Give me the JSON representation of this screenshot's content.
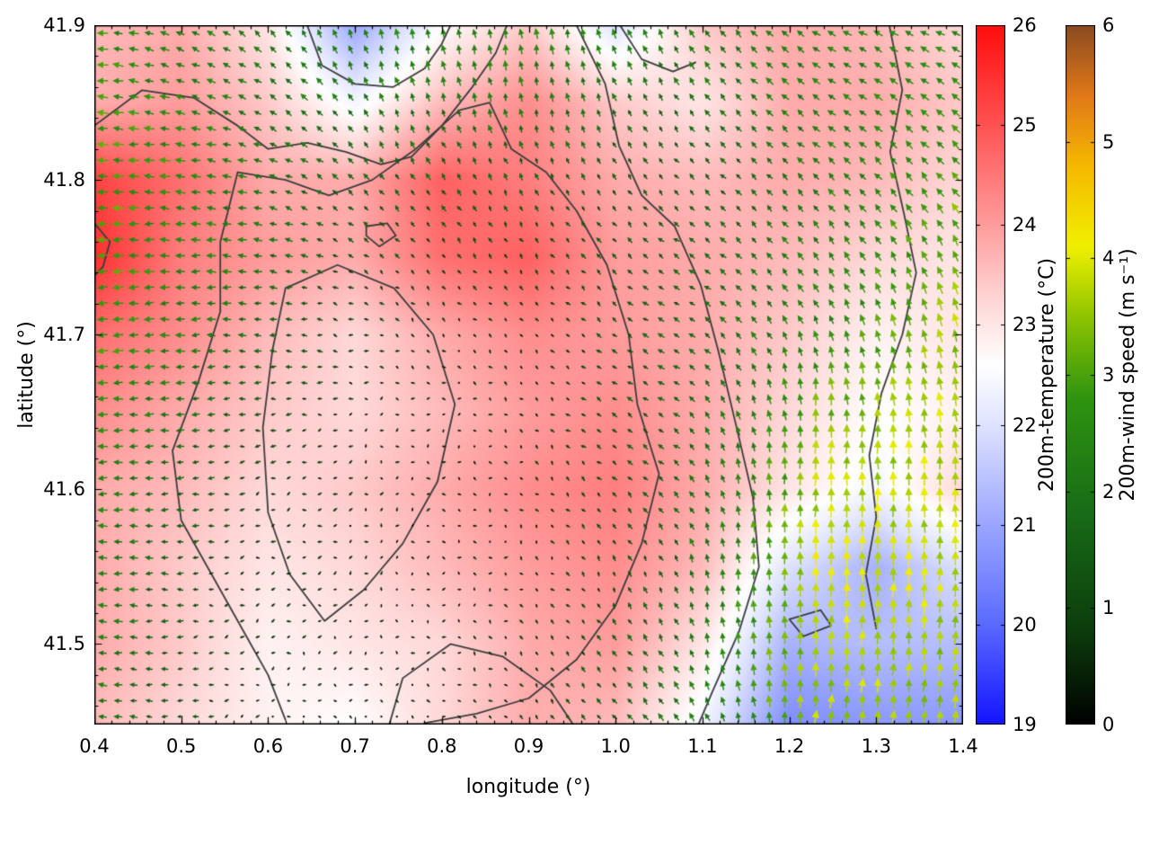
{
  "page": {
    "background": "#ffffff"
  },
  "axes": {
    "xlabel": "longitude (°)",
    "ylabel": "latitude (°)",
    "x_tick_labels": [
      "0.4",
      "0.5",
      "0.6",
      "0.7",
      "0.8",
      "0.9",
      "1.0",
      "1.1",
      "1.2",
      "1.3",
      "1.4"
    ],
    "y_tick_labels": [
      "41.5",
      "41.6",
      "41.7",
      "41.8",
      "41.9"
    ]
  },
  "chart_data": {
    "type": "heatmap",
    "subtype": "temperature field with wind vector overlay and terrain contours",
    "title": "",
    "xlabel": "longitude (°)",
    "ylabel": "latitude (°)",
    "xlim": [
      0.4,
      1.4
    ],
    "ylim": [
      41.448,
      41.9
    ],
    "x_ticks": [
      0.4,
      0.5,
      0.6,
      0.7,
      0.8,
      0.9,
      1.0,
      1.1,
      1.2,
      1.3,
      1.4
    ],
    "y_ticks": [
      41.5,
      41.6,
      41.7,
      41.8,
      41.9
    ],
    "x_minor_step": 0.02,
    "y_minor_step": 0.02,
    "contour_color": "#3c3c3c",
    "temperature_field": {
      "units": "°C",
      "lon": [
        0.4,
        0.5,
        0.6,
        0.7,
        0.8,
        0.9,
        1.0,
        1.1,
        1.2,
        1.3,
        1.4
      ],
      "lat": [
        41.9,
        41.85,
        41.8,
        41.75,
        41.7,
        41.65,
        41.6,
        41.55,
        41.5,
        41.45
      ],
      "values": [
        [
          23.6,
          23.8,
          23.0,
          21.0,
          22.6,
          23.4,
          22.0,
          23.4,
          23.8,
          23.6,
          23.2
        ],
        [
          23.8,
          24.0,
          23.4,
          22.4,
          23.6,
          24.2,
          23.4,
          23.0,
          23.8,
          23.8,
          23.4
        ],
        [
          25.2,
          24.6,
          23.8,
          23.8,
          24.8,
          24.4,
          23.8,
          23.6,
          23.8,
          23.6,
          23.2
        ],
        [
          25.5,
          24.4,
          24.0,
          23.8,
          24.6,
          24.8,
          24.0,
          23.8,
          23.6,
          23.2,
          23.0
        ],
        [
          24.6,
          24.2,
          23.6,
          23.2,
          23.8,
          24.2,
          24.0,
          23.8,
          23.4,
          22.8,
          23.0
        ],
        [
          24.2,
          23.8,
          23.4,
          23.2,
          23.6,
          24.0,
          24.2,
          23.8,
          23.2,
          22.6,
          22.8
        ],
        [
          23.8,
          23.6,
          23.2,
          23.4,
          23.8,
          24.2,
          24.4,
          23.8,
          23.0,
          22.4,
          23.2
        ],
        [
          23.8,
          23.4,
          23.0,
          23.2,
          23.6,
          24.0,
          24.2,
          23.6,
          22.0,
          21.2,
          22.0
        ],
        [
          23.8,
          23.4,
          22.8,
          23.0,
          23.2,
          23.8,
          24.0,
          23.0,
          21.2,
          21.4,
          21.4
        ],
        [
          23.6,
          23.2,
          22.8,
          22.6,
          23.2,
          23.8,
          23.6,
          22.4,
          20.6,
          20.8,
          20.8
        ]
      ]
    },
    "wind_field": {
      "units": "m s⁻¹",
      "lon": [
        0.4,
        0.567,
        0.733,
        0.9,
        1.067,
        1.233,
        1.4
      ],
      "lat": [
        41.9,
        41.81,
        41.72,
        41.63,
        41.54,
        41.45
      ],
      "u": [
        [
          -2.6,
          -1.6,
          -0.6,
          -0.2,
          -1.2,
          -2.0,
          -2.4
        ],
        [
          -3.0,
          -2.2,
          -1.0,
          -0.6,
          -0.8,
          -1.6,
          -2.0
        ],
        [
          -3.0,
          -2.0,
          -0.5,
          -0.4,
          -1.4,
          -1.2,
          -1.0
        ],
        [
          -2.6,
          -1.0,
          -0.3,
          -0.3,
          -1.4,
          0.3,
          -0.5
        ],
        [
          -2.4,
          -0.6,
          -0.2,
          -0.3,
          -0.6,
          0.0,
          0.2
        ],
        [
          -2.0,
          -0.5,
          -0.2,
          -0.5,
          -1.4,
          0.4,
          0.4
        ]
      ],
      "v": [
        [
          0.4,
          1.2,
          2.4,
          2.6,
          2.0,
          1.2,
          1.0
        ],
        [
          0.0,
          0.5,
          1.4,
          1.4,
          1.0,
          1.4,
          2.2
        ],
        [
          -0.3,
          0.1,
          0.3,
          0.5,
          0.8,
          2.0,
          3.4
        ],
        [
          0.0,
          -0.2,
          -0.2,
          0.3,
          1.0,
          3.6,
          3.8
        ],
        [
          0.1,
          -0.2,
          -0.2,
          0.2,
          1.5,
          4.0,
          3.8
        ],
        [
          0.3,
          -0.2,
          0.2,
          0.5,
          1.6,
          3.6,
          3.4
        ]
      ]
    },
    "contours": [
      [
        [
          0.62,
          41.451
        ],
        [
          0.6,
          41.48
        ],
        [
          0.57,
          41.51
        ],
        [
          0.535,
          41.545
        ],
        [
          0.5,
          41.58
        ],
        [
          0.49,
          41.625
        ],
        [
          0.52,
          41.67
        ],
        [
          0.545,
          41.715
        ],
        [
          0.545,
          41.76
        ],
        [
          0.565,
          41.805
        ],
        [
          0.62,
          41.8
        ],
        [
          0.67,
          41.79
        ],
        [
          0.72,
          41.8
        ],
        [
          0.77,
          41.82
        ],
        [
          0.82,
          41.845
        ],
        [
          0.855,
          41.85
        ],
        [
          0.88,
          41.82
        ],
        [
          0.92,
          41.805
        ],
        [
          0.955,
          41.78
        ],
        [
          0.99,
          41.745
        ],
        [
          1.015,
          41.7
        ],
        [
          1.025,
          41.655
        ],
        [
          1.05,
          41.61
        ],
        [
          1.03,
          41.565
        ],
        [
          1.0,
          41.525
        ],
        [
          0.955,
          41.49
        ],
        [
          0.9,
          41.465
        ],
        [
          0.84,
          41.455
        ],
        [
          0.78,
          41.449
        ]
      ],
      [
        [
          0.62,
          41.73
        ],
        [
          0.68,
          41.745
        ],
        [
          0.745,
          41.73
        ],
        [
          0.79,
          41.7
        ],
        [
          0.815,
          41.655
        ],
        [
          0.795,
          41.605
        ],
        [
          0.755,
          41.565
        ],
        [
          0.71,
          41.535
        ],
        [
          0.665,
          41.515
        ],
        [
          0.625,
          41.545
        ],
        [
          0.6,
          41.585
        ],
        [
          0.594,
          41.64
        ],
        [
          0.605,
          41.69
        ],
        [
          0.62,
          41.73
        ]
      ],
      [
        [
          0.74,
          41.449
        ],
        [
          0.755,
          41.478
        ],
        [
          0.81,
          41.5
        ],
        [
          0.87,
          41.492
        ],
        [
          0.925,
          41.47
        ],
        [
          0.95,
          41.449
        ]
      ],
      [
        [
          0.4,
          41.835
        ],
        [
          0.455,
          41.858
        ],
        [
          0.515,
          41.853
        ],
        [
          0.565,
          41.835
        ],
        [
          0.6,
          41.82
        ],
        [
          0.645,
          41.824
        ],
        [
          0.69,
          41.818
        ],
        [
          0.73,
          41.81
        ],
        [
          0.765,
          41.815
        ],
        [
          0.8,
          41.835
        ],
        [
          0.835,
          41.86
        ],
        [
          0.862,
          41.882
        ],
        [
          0.875,
          41.9
        ]
      ],
      [
        [
          0.645,
          41.9
        ],
        [
          0.662,
          41.874
        ],
        [
          0.7,
          41.862
        ],
        [
          0.744,
          41.86
        ],
        [
          0.78,
          41.872
        ],
        [
          0.8,
          41.888
        ],
        [
          0.81,
          41.9
        ]
      ],
      [
        [
          0.955,
          41.9
        ],
        [
          0.988,
          41.862
        ],
        [
          1.004,
          41.822
        ],
        [
          1.03,
          41.79
        ],
        [
          1.068,
          41.77
        ],
        [
          1.098,
          41.732
        ],
        [
          1.118,
          41.69
        ],
        [
          1.138,
          41.643
        ],
        [
          1.158,
          41.595
        ],
        [
          1.165,
          41.55
        ],
        [
          1.142,
          41.508
        ],
        [
          1.112,
          41.47
        ],
        [
          1.096,
          41.449
        ]
      ],
      [
        [
          1.315,
          41.9
        ],
        [
          1.33,
          41.858
        ],
        [
          1.316,
          41.818
        ],
        [
          1.332,
          41.778
        ],
        [
          1.346,
          41.74
        ],
        [
          1.33,
          41.7
        ],
        [
          1.306,
          41.662
        ],
        [
          1.292,
          41.622
        ],
        [
          1.3,
          41.582
        ],
        [
          1.288,
          41.545
        ],
        [
          1.3,
          41.51
        ]
      ],
      [
        [
          1.2,
          41.516
        ],
        [
          1.236,
          41.522
        ],
        [
          1.248,
          41.512
        ],
        [
          1.216,
          41.505
        ],
        [
          1.2,
          41.516
        ]
      ],
      [
        [
          0.713,
          41.77
        ],
        [
          0.737,
          41.772
        ],
        [
          0.747,
          41.764
        ],
        [
          0.728,
          41.757
        ],
        [
          0.713,
          41.764
        ],
        [
          0.713,
          41.77
        ]
      ],
      [
        [
          1.005,
          41.9
        ],
        [
          1.03,
          41.878
        ],
        [
          1.066,
          41.87
        ],
        [
          1.092,
          41.876
        ]
      ],
      [
        [
          0.4,
          41.772
        ],
        [
          0.418,
          41.76
        ],
        [
          0.41,
          41.744
        ],
        [
          0.4,
          41.738
        ]
      ]
    ],
    "colorbar_temperature": {
      "label": "200m-temperature (°C)",
      "min": 19,
      "max": 26,
      "ticks": [
        19,
        20,
        21,
        22,
        23,
        24,
        25,
        26
      ],
      "tick_labels": [
        "19",
        "20",
        "21",
        "22",
        "23",
        "24",
        "25",
        "26"
      ],
      "stops": [
        [
          19,
          "#1414ff"
        ],
        [
          20,
          "#5a6aff"
        ],
        [
          21,
          "#9aa6ff"
        ],
        [
          22,
          "#dfe3ff"
        ],
        [
          22.6,
          "#ffffff"
        ],
        [
          23.2,
          "#ffd9d9"
        ],
        [
          24,
          "#ff9c9c"
        ],
        [
          25,
          "#ff5252"
        ],
        [
          26,
          "#ff0d0d"
        ]
      ]
    },
    "colorbar_wind": {
      "label": "200m-wind speed (m s⁻¹)",
      "min": 0,
      "max": 6,
      "ticks": [
        0,
        1,
        2,
        3,
        4,
        5,
        6
      ],
      "tick_labels": [
        "0",
        "1",
        "2",
        "3",
        "4",
        "5",
        "6"
      ],
      "stops": [
        [
          0,
          "#000000"
        ],
        [
          0.8,
          "#0c3c0c"
        ],
        [
          1.8,
          "#176b17"
        ],
        [
          2.8,
          "#2f9410"
        ],
        [
          3.5,
          "#8fc400"
        ],
        [
          4.1,
          "#f0f000"
        ],
        [
          4.8,
          "#f5b800"
        ],
        [
          5.4,
          "#e07818"
        ],
        [
          6,
          "#8a4a20"
        ]
      ]
    }
  }
}
